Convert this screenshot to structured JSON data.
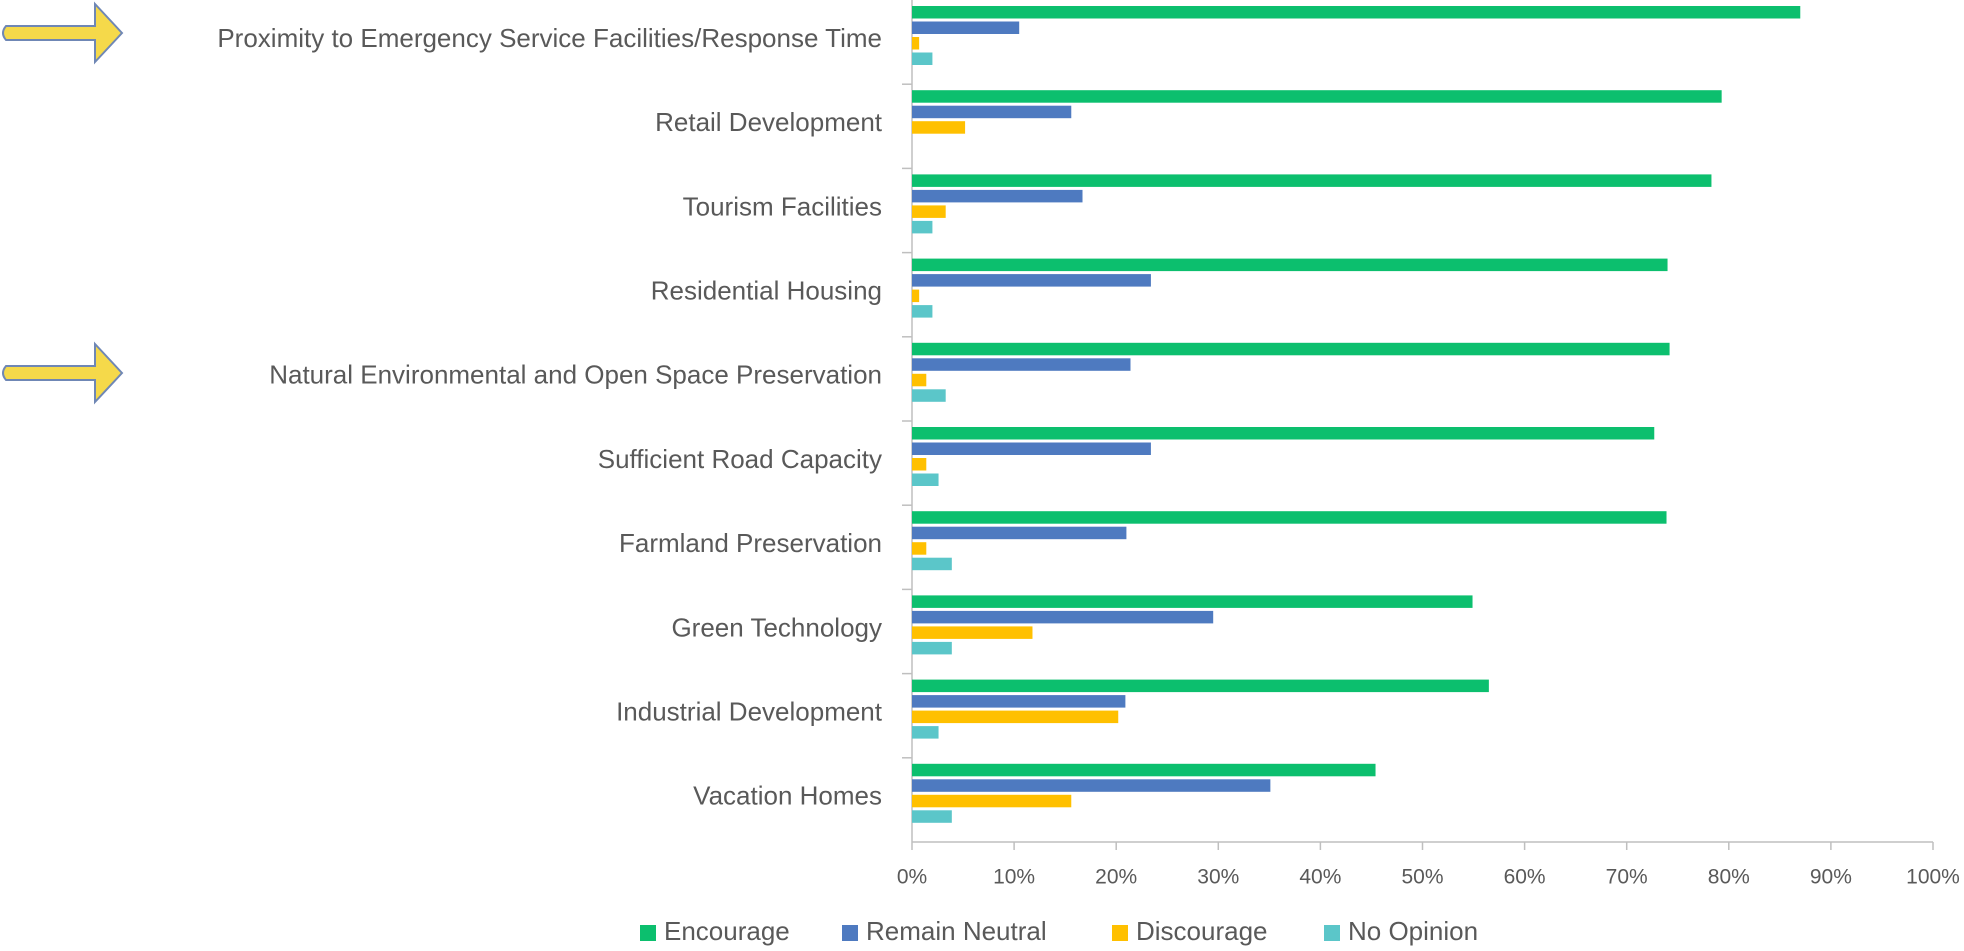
{
  "chart_data": {
    "type": "bar",
    "orientation": "horizontal",
    "categories": [
      "Proximity to Emergency Service Facilities/Response Time",
      "Retail Development",
      "Tourism Facilities",
      "Residential Housing",
      "Natural Environmental and Open Space Preservation",
      "Sufficient Road Capacity",
      "Farmland Preservation",
      "Green Technology",
      "Industrial Development",
      "Vacation Homes"
    ],
    "series": [
      {
        "name": "Encourage",
        "color": "#0cbf6e",
        "values": [
          87,
          79.3,
          78.3,
          74,
          74.2,
          72.7,
          73.9,
          54.9,
          56.5,
          45.4
        ]
      },
      {
        "name": "Remain Neutral",
        "color": "#4e7ac0",
        "values": [
          10.5,
          15.6,
          16.7,
          23.4,
          21.4,
          23.4,
          21,
          29.5,
          20.9,
          35.1
        ]
      },
      {
        "name": "Discourage",
        "color": "#ffc000",
        "values": [
          0.7,
          5.2,
          3.3,
          0.7,
          1.4,
          1.4,
          1.4,
          11.8,
          20.2,
          15.6
        ]
      },
      {
        "name": "No Opinion",
        "color": "#5bc6c9",
        "values": [
          2,
          0,
          2,
          2,
          3.3,
          2.6,
          3.9,
          3.9,
          2.6,
          3.9
        ]
      }
    ],
    "xlim": [
      0,
      100
    ],
    "xticks": [
      {
        "value": 0,
        "label": "0%"
      },
      {
        "value": 10,
        "label": "10%"
      },
      {
        "value": 20,
        "label": "20%"
      },
      {
        "value": 30,
        "label": "30%"
      },
      {
        "value": 40,
        "label": "40%"
      },
      {
        "value": 50,
        "label": "50%"
      },
      {
        "value": 60,
        "label": "60%"
      },
      {
        "value": 70,
        "label": "70%"
      },
      {
        "value": 80,
        "label": "80%"
      },
      {
        "value": 90,
        "label": "90%"
      },
      {
        "value": 100,
        "label": "100%"
      }
    ],
    "grid": false,
    "legend": "bottom"
  }
}
